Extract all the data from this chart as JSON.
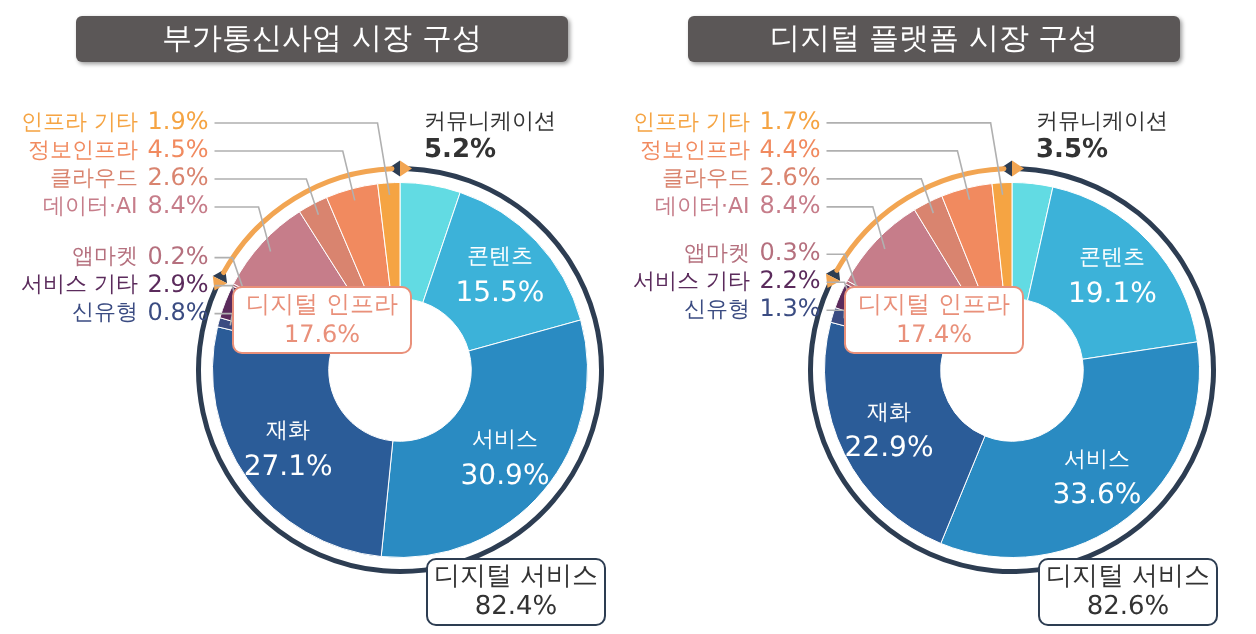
{
  "chart_data": [
    {
      "type": "donut",
      "title": "부가통신사업 시장 구성",
      "categories": [
        "커뮤니케이션",
        "콘텐츠",
        "서비스",
        "재화",
        "신유형",
        "서비스 기타",
        "앱마켓",
        "데이터·AI",
        "클라우드",
        "정보인프라",
        "인프라 기타"
      ],
      "values": [
        5.2,
        15.5,
        30.9,
        27.1,
        0.8,
        2.9,
        0.2,
        8.4,
        2.6,
        4.5,
        1.9
      ],
      "value_labels": [
        "5.2%",
        "15.5%",
        "30.9%",
        "27.1%",
        "0.8%",
        "2.9%",
        "0.2%",
        "8.4%",
        "2.6%",
        "4.5%",
        "1.9%"
      ],
      "colors": [
        "#62dbe3",
        "#3cb2d9",
        "#2a8bc2",
        "#2b5c98",
        "#3b4c82",
        "#5b2b5c",
        "#b5707e",
        "#c67d8a",
        "#d9846f",
        "#f18a5f",
        "#f5a443"
      ],
      "annotations": [
        "디지털 서비스 82.4%",
        "디지털 인프라 17.6%"
      ]
    },
    {
      "type": "donut",
      "title": "디지털 플랫폼 시장 구성",
      "categories": [
        "커뮤니케이션",
        "콘텐츠",
        "서비스",
        "재화",
        "신유형",
        "서비스 기타",
        "앱마켓",
        "데이터·AI",
        "클라우드",
        "정보인프라",
        "인프라 기타"
      ],
      "values": [
        3.5,
        19.1,
        33.6,
        22.9,
        1.3,
        2.2,
        0.3,
        8.4,
        2.6,
        4.4,
        1.7
      ],
      "value_labels": [
        "3.5%",
        "19.1%",
        "33.6%",
        "22.9%",
        "1.3%",
        "2.2%",
        "0.3%",
        "8.4%",
        "2.6%",
        "4.4%",
        "1.7%"
      ],
      "colors": [
        "#62dbe3",
        "#3cb2d9",
        "#2a8bc2",
        "#2b5c98",
        "#3b4c82",
        "#5b2b5c",
        "#b5707e",
        "#c67d8a",
        "#d9846f",
        "#f18a5f",
        "#f5a443"
      ],
      "annotations": [
        "디지털 서비스 82.6%",
        "디지털 인프라 17.4%"
      ]
    }
  ]
}
